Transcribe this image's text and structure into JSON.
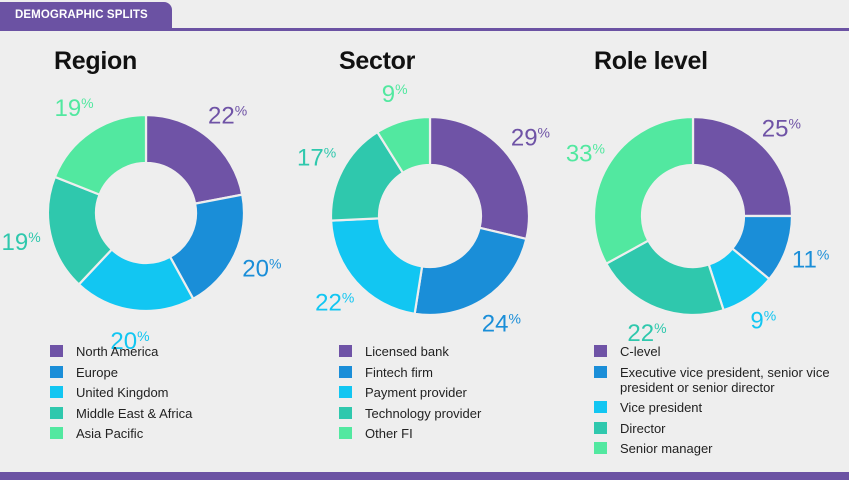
{
  "header": {
    "label": "DEMOGRAPHIC SPLITS"
  },
  "colors": {
    "accent": "#6b52a3",
    "background": "#eeeeee"
  },
  "chart_data": [
    {
      "type": "pie",
      "variant": "donut",
      "title": "Region",
      "categories": [
        "North America",
        "Europe",
        "United Kingdom",
        "Middle East & Africa",
        "Asia Pacific"
      ],
      "values": [
        22,
        20,
        20,
        19,
        19
      ],
      "labels": [
        "22%",
        "20%",
        "20%",
        "19%",
        "19%"
      ],
      "colors": [
        "#6f53a6",
        "#1a8ed8",
        "#12c6f2",
        "#2fc8ad",
        "#52e8a0"
      ],
      "legend": "bottom"
    },
    {
      "type": "pie",
      "variant": "donut",
      "title": "Sector",
      "categories": [
        "Licensed bank",
        "Fintech firm",
        "Payment provider",
        "Technology provider",
        "Other FI"
      ],
      "values": [
        29,
        24,
        22,
        17,
        9
      ],
      "labels": [
        "29%",
        "24%",
        "22%",
        "17%",
        "9%"
      ],
      "colors": [
        "#6f53a6",
        "#1a8ed8",
        "#12c6f2",
        "#2fc8ad",
        "#52e8a0"
      ],
      "legend": "bottom"
    },
    {
      "type": "pie",
      "variant": "donut",
      "title": "Role level",
      "categories": [
        "C-level",
        "Executive vice president, senior vice president or senior director",
        "Vice president",
        "Director",
        "Senior manager"
      ],
      "values": [
        25,
        11,
        9,
        22,
        33
      ],
      "labels": [
        "25%",
        "11%",
        "9%",
        "22%",
        "33%"
      ],
      "colors": [
        "#6f53a6",
        "#1a8ed8",
        "#12c6f2",
        "#2fc8ad",
        "#52e8a0"
      ],
      "legend": "bottom"
    }
  ]
}
